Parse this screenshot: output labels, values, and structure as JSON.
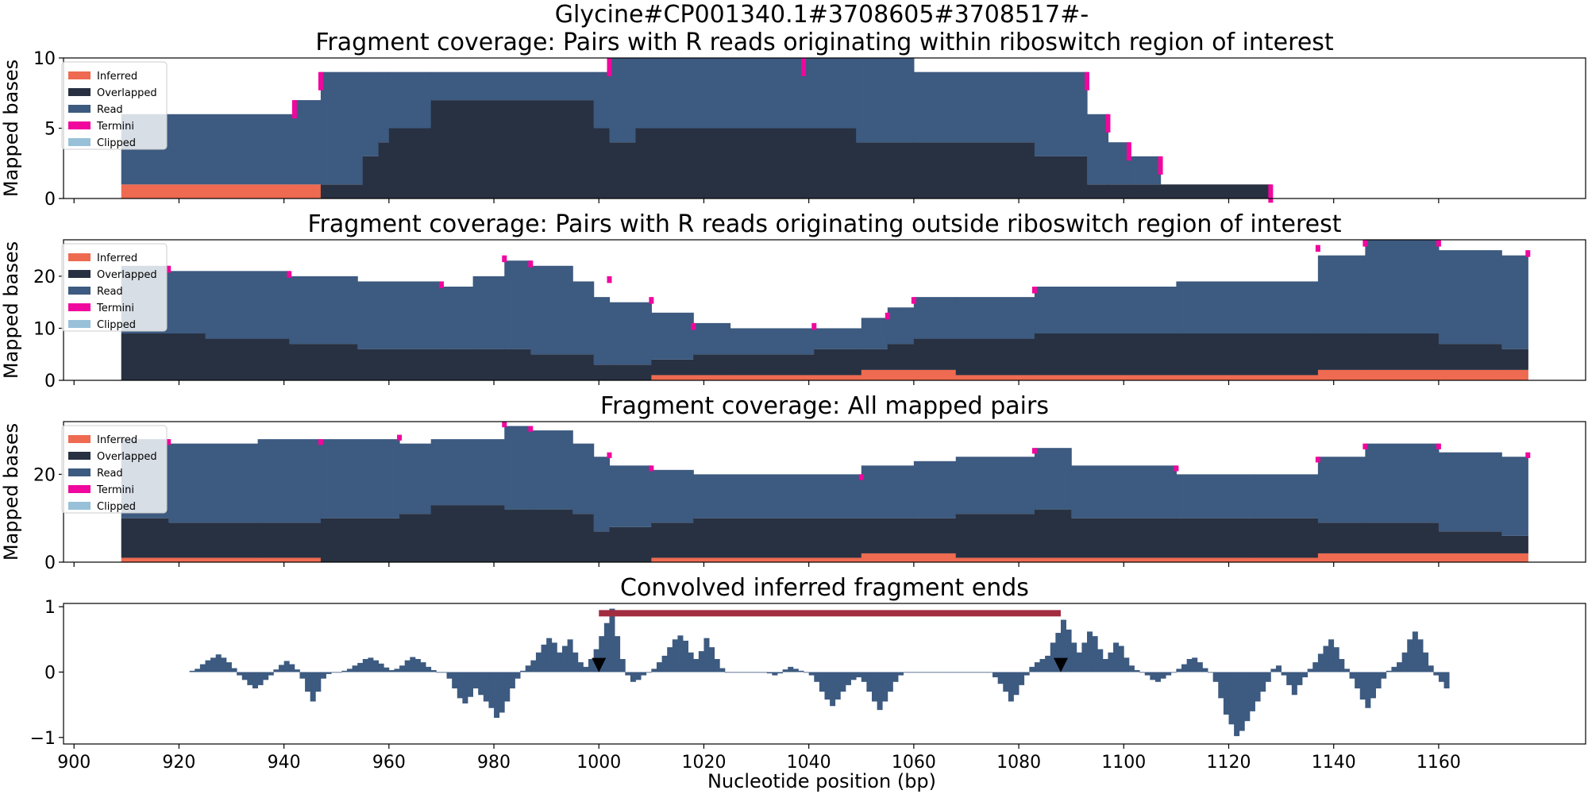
{
  "figure": {
    "suptitle": "Glycine#CP001340.1#3708605#3708517#-",
    "xlabel": "Nucleotide position (bp)",
    "x_ticks": [
      900,
      920,
      940,
      960,
      980,
      1000,
      1020,
      1040,
      1060,
      1080,
      1100,
      1120,
      1140,
      1160
    ],
    "xlim": [
      898,
      1188
    ]
  },
  "colors": {
    "Inferred": "#ee6a50",
    "Overlapped": "#283142",
    "Read": "#3d5a80",
    "Termini": "#f0079d",
    "Clipped": "#98c1d9",
    "bar": "#3d5a80",
    "region": "#a22c40",
    "marker": "#000000"
  },
  "legend_entries": [
    "Inferred",
    "Overlapped",
    "Read",
    "Termini",
    "Clipped"
  ],
  "chart_data": [
    {
      "type": "area",
      "title": "Fragment coverage: Pairs with R reads originating within riboswitch region of interest",
      "ylabel": "Mapped bases",
      "ylim": [
        0,
        10
      ],
      "y_ticks": [
        0,
        5,
        10
      ],
      "legend": "top-left",
      "segments": [
        {
          "x0": 909,
          "x1": 942,
          "inferred": 1,
          "overlapped": 0,
          "read": 5,
          "termini": 0
        },
        {
          "x0": 942,
          "x1": 947,
          "inferred": 1,
          "overlapped": 0,
          "read": 6,
          "termini": 0
        },
        {
          "x0": 947,
          "x1": 955,
          "inferred": 0,
          "overlapped": 1,
          "read": 8,
          "termini": 0
        },
        {
          "x0": 955,
          "x1": 958,
          "inferred": 0,
          "overlapped": 3,
          "read": 6,
          "termini": 0
        },
        {
          "x0": 958,
          "x1": 960,
          "inferred": 0,
          "overlapped": 4,
          "read": 5,
          "termini": 0
        },
        {
          "x0": 960,
          "x1": 968,
          "inferred": 0,
          "overlapped": 5,
          "read": 4,
          "termini": 0
        },
        {
          "x0": 968,
          "x1": 999,
          "inferred": 0,
          "overlapped": 7,
          "read": 2,
          "termini": 0
        },
        {
          "x0": 999,
          "x1": 1002,
          "inferred": 0,
          "overlapped": 5,
          "read": 4,
          "termini": 0
        },
        {
          "x0": 1002,
          "x1": 1007,
          "inferred": 0,
          "overlapped": 4,
          "read": 6,
          "termini": 0
        },
        {
          "x0": 1007,
          "x1": 1049,
          "inferred": 0,
          "overlapped": 5,
          "read": 5,
          "termini": 0
        },
        {
          "x0": 1049,
          "x1": 1060,
          "inferred": 0,
          "overlapped": 4,
          "read": 6,
          "termini": 0
        },
        {
          "x0": 1060,
          "x1": 1083,
          "inferred": 0,
          "overlapped": 4,
          "read": 5,
          "termini": 0
        },
        {
          "x0": 1083,
          "x1": 1093,
          "inferred": 0,
          "overlapped": 3,
          "read": 6,
          "termini": 0
        },
        {
          "x0": 1093,
          "x1": 1097,
          "inferred": 0,
          "overlapped": 1,
          "read": 5,
          "termini": 0
        },
        {
          "x0": 1097,
          "x1": 1101,
          "inferred": 0,
          "overlapped": 1,
          "read": 3,
          "termini": 0
        },
        {
          "x0": 1101,
          "x1": 1107,
          "inferred": 0,
          "overlapped": 1,
          "read": 2,
          "termini": 0
        },
        {
          "x0": 1107,
          "x1": 1128,
          "inferred": 0,
          "overlapped": 1,
          "read": 0,
          "termini": 0
        }
      ],
      "termini_marks": [
        {
          "x": 942,
          "top": 7
        },
        {
          "x": 947,
          "top": 9
        },
        {
          "x": 1002,
          "top": 10
        },
        {
          "x": 1039,
          "top": 10
        },
        {
          "x": 1093,
          "top": 9
        },
        {
          "x": 1097,
          "top": 6
        },
        {
          "x": 1101,
          "top": 4
        },
        {
          "x": 1107,
          "top": 3
        },
        {
          "x": 1128,
          "top": 1
        }
      ]
    },
    {
      "type": "area",
      "title": "Fragment coverage: Pairs with R reads originating outside riboswitch region of interest",
      "ylabel": "Mapped bases",
      "ylim": [
        0,
        27
      ],
      "y_ticks": [
        0,
        10,
        20
      ],
      "legend": "top-left",
      "segments": [
        {
          "x0": 909,
          "x1": 918,
          "inferred": 0,
          "overlapped": 9,
          "read": 13,
          "termini": 0
        },
        {
          "x0": 918,
          "x1": 925,
          "inferred": 0,
          "overlapped": 9,
          "read": 12,
          "termini": 0
        },
        {
          "x0": 925,
          "x1": 941,
          "inferred": 0,
          "overlapped": 8,
          "read": 13,
          "termini": 0
        },
        {
          "x0": 941,
          "x1": 954,
          "inferred": 0,
          "overlapped": 7,
          "read": 13,
          "termini": 0
        },
        {
          "x0": 954,
          "x1": 970,
          "inferred": 0,
          "overlapped": 6,
          "read": 13,
          "termini": 0
        },
        {
          "x0": 970,
          "x1": 976,
          "inferred": 0,
          "overlapped": 6,
          "read": 12,
          "termini": 0
        },
        {
          "x0": 976,
          "x1": 982,
          "inferred": 0,
          "overlapped": 6,
          "read": 14,
          "termini": 0
        },
        {
          "x0": 982,
          "x1": 987,
          "inferred": 0,
          "overlapped": 6,
          "read": 17,
          "termini": 0
        },
        {
          "x0": 987,
          "x1": 995,
          "inferred": 0,
          "overlapped": 5,
          "read": 17,
          "termini": 0
        },
        {
          "x0": 995,
          "x1": 999,
          "inferred": 0,
          "overlapped": 5,
          "read": 14,
          "termini": 0
        },
        {
          "x0": 999,
          "x1": 1002,
          "inferred": 0,
          "overlapped": 3,
          "read": 13,
          "termini": 0
        },
        {
          "x0": 1002,
          "x1": 1010,
          "inferred": 0,
          "overlapped": 3,
          "read": 12,
          "termini": 0
        },
        {
          "x0": 1010,
          "x1": 1018,
          "inferred": 1,
          "overlapped": 3,
          "read": 9,
          "termini": 0
        },
        {
          "x0": 1018,
          "x1": 1025,
          "inferred": 1,
          "overlapped": 4,
          "read": 6,
          "termini": 0
        },
        {
          "x0": 1025,
          "x1": 1041,
          "inferred": 1,
          "overlapped": 4,
          "read": 5,
          "termini": 0
        },
        {
          "x0": 1041,
          "x1": 1050,
          "inferred": 1,
          "overlapped": 5,
          "read": 4,
          "termini": 0
        },
        {
          "x0": 1050,
          "x1": 1055,
          "inferred": 2,
          "overlapped": 4,
          "read": 6,
          "termini": 0
        },
        {
          "x0": 1055,
          "x1": 1060,
          "inferred": 2,
          "overlapped": 5,
          "read": 7,
          "termini": 0
        },
        {
          "x0": 1060,
          "x1": 1068,
          "inferred": 2,
          "overlapped": 6,
          "read": 8,
          "termini": 0
        },
        {
          "x0": 1068,
          "x1": 1083,
          "inferred": 1,
          "overlapped": 7,
          "read": 8,
          "termini": 0
        },
        {
          "x0": 1083,
          "x1": 1110,
          "inferred": 1,
          "overlapped": 8,
          "read": 9,
          "termini": 0
        },
        {
          "x0": 1110,
          "x1": 1137,
          "inferred": 1,
          "overlapped": 8,
          "read": 10,
          "termini": 0
        },
        {
          "x0": 1137,
          "x1": 1146,
          "inferred": 2,
          "overlapped": 7,
          "read": 15,
          "termini": 0
        },
        {
          "x0": 1146,
          "x1": 1160,
          "inferred": 2,
          "overlapped": 7,
          "read": 18,
          "termini": 0
        },
        {
          "x0": 1160,
          "x1": 1172,
          "inferred": 2,
          "overlapped": 5,
          "read": 18,
          "termini": 0
        },
        {
          "x0": 1172,
          "x1": 1177,
          "inferred": 2,
          "overlapped": 4,
          "read": 18,
          "termini": 0
        }
      ],
      "termini_marks": [
        {
          "x": 918,
          "top": 22
        },
        {
          "x": 941,
          "top": 21
        },
        {
          "x": 970,
          "top": 19
        },
        {
          "x": 982,
          "top": 24
        },
        {
          "x": 987,
          "top": 23
        },
        {
          "x": 1002,
          "top": 20
        },
        {
          "x": 1010,
          "top": 16
        },
        {
          "x": 1018,
          "top": 11
        },
        {
          "x": 1041,
          "top": 11
        },
        {
          "x": 1055,
          "top": 13
        },
        {
          "x": 1060,
          "top": 16
        },
        {
          "x": 1083,
          "top": 18
        },
        {
          "x": 1137,
          "top": 26
        },
        {
          "x": 1146,
          "top": 27
        },
        {
          "x": 1160,
          "top": 27
        },
        {
          "x": 1177,
          "top": 25
        }
      ]
    },
    {
      "type": "area",
      "title": "Fragment coverage: All mapped pairs",
      "ylabel": "Mapped bases",
      "ylim": [
        0,
        32
      ],
      "y_ticks": [
        0,
        20
      ],
      "legend": "top-left",
      "segments": [
        {
          "x0": 909,
          "x1": 918,
          "inferred": 1,
          "overlapped": 9,
          "read": 18,
          "termini": 0
        },
        {
          "x0": 918,
          "x1": 935,
          "inferred": 1,
          "overlapped": 8,
          "read": 18,
          "termini": 0
        },
        {
          "x0": 935,
          "x1": 947,
          "inferred": 1,
          "overlapped": 8,
          "read": 19,
          "termini": 0
        },
        {
          "x0": 947,
          "x1": 962,
          "inferred": 0,
          "overlapped": 10,
          "read": 18,
          "termini": 0
        },
        {
          "x0": 962,
          "x1": 968,
          "inferred": 0,
          "overlapped": 11,
          "read": 16,
          "termini": 0
        },
        {
          "x0": 968,
          "x1": 982,
          "inferred": 0,
          "overlapped": 13,
          "read": 15,
          "termini": 0
        },
        {
          "x0": 982,
          "x1": 987,
          "inferred": 0,
          "overlapped": 12,
          "read": 19,
          "termini": 0
        },
        {
          "x0": 987,
          "x1": 995,
          "inferred": 0,
          "overlapped": 12,
          "read": 18,
          "termini": 0
        },
        {
          "x0": 995,
          "x1": 999,
          "inferred": 0,
          "overlapped": 11,
          "read": 16,
          "termini": 0
        },
        {
          "x0": 999,
          "x1": 1002,
          "inferred": 0,
          "overlapped": 7,
          "read": 17,
          "termini": 0
        },
        {
          "x0": 1002,
          "x1": 1010,
          "inferred": 0,
          "overlapped": 8,
          "read": 14,
          "termini": 0
        },
        {
          "x0": 1010,
          "x1": 1018,
          "inferred": 1,
          "overlapped": 8,
          "read": 12,
          "termini": 0
        },
        {
          "x0": 1018,
          "x1": 1050,
          "inferred": 1,
          "overlapped": 9,
          "read": 10,
          "termini": 0
        },
        {
          "x0": 1050,
          "x1": 1060,
          "inferred": 2,
          "overlapped": 8,
          "read": 12,
          "termini": 0
        },
        {
          "x0": 1060,
          "x1": 1068,
          "inferred": 2,
          "overlapped": 8,
          "read": 13,
          "termini": 0
        },
        {
          "x0": 1068,
          "x1": 1083,
          "inferred": 1,
          "overlapped": 10,
          "read": 13,
          "termini": 0
        },
        {
          "x0": 1083,
          "x1": 1090,
          "inferred": 1,
          "overlapped": 11,
          "read": 14,
          "termini": 0
        },
        {
          "x0": 1090,
          "x1": 1110,
          "inferred": 1,
          "overlapped": 9,
          "read": 12,
          "termini": 0
        },
        {
          "x0": 1110,
          "x1": 1125,
          "inferred": 1,
          "overlapped": 9,
          "read": 10,
          "termini": 0
        },
        {
          "x0": 1125,
          "x1": 1137,
          "inferred": 1,
          "overlapped": 9,
          "read": 10,
          "termini": 0
        },
        {
          "x0": 1137,
          "x1": 1146,
          "inferred": 2,
          "overlapped": 7,
          "read": 15,
          "termini": 0
        },
        {
          "x0": 1146,
          "x1": 1160,
          "inferred": 2,
          "overlapped": 7,
          "read": 18,
          "termini": 0
        },
        {
          "x0": 1160,
          "x1": 1172,
          "inferred": 2,
          "overlapped": 5,
          "read": 18,
          "termini": 0
        },
        {
          "x0": 1172,
          "x1": 1177,
          "inferred": 2,
          "overlapped": 4,
          "read": 18,
          "termini": 0
        }
      ],
      "termini_marks": [
        {
          "x": 918,
          "top": 28
        },
        {
          "x": 947,
          "top": 28
        },
        {
          "x": 962,
          "top": 29
        },
        {
          "x": 982,
          "top": 32
        },
        {
          "x": 987,
          "top": 31
        },
        {
          "x": 1002,
          "top": 25
        },
        {
          "x": 1010,
          "top": 22
        },
        {
          "x": 1050,
          "top": 20
        },
        {
          "x": 1083,
          "top": 26
        },
        {
          "x": 1110,
          "top": 22
        },
        {
          "x": 1137,
          "top": 24
        },
        {
          "x": 1146,
          "top": 27
        },
        {
          "x": 1160,
          "top": 27
        },
        {
          "x": 1177,
          "top": 25
        }
      ]
    },
    {
      "type": "bar",
      "title": "Convolved inferred fragment ends",
      "ylim": [
        -1.1,
        1.05
      ],
      "y_ticks": [
        -1,
        0,
        1
      ],
      "region": {
        "x0": 1000,
        "x1": 1088,
        "y": 0.9
      },
      "markers": [
        {
          "x": 1000,
          "y": 0.12
        },
        {
          "x": 1088,
          "y": 0.12
        }
      ],
      "x_start": 922,
      "bin_width": 1,
      "values": [
        0.02,
        0.05,
        0.12,
        0.18,
        0.22,
        0.27,
        0.22,
        0.15,
        0.06,
        -0.05,
        -0.12,
        -0.2,
        -0.25,
        -0.2,
        -0.12,
        -0.05,
        0.04,
        0.11,
        0.17,
        0.12,
        0.04,
        -0.1,
        -0.3,
        -0.45,
        -0.3,
        -0.1,
        -0.03,
        0.0,
        0.0,
        0.02,
        0.05,
        0.1,
        0.14,
        0.2,
        0.22,
        0.18,
        0.13,
        0.07,
        0.03,
        0.05,
        0.1,
        0.18,
        0.23,
        0.2,
        0.15,
        0.08,
        0.03,
        0.0,
        0.0,
        -0.1,
        -0.25,
        -0.4,
        -0.48,
        -0.38,
        -0.25,
        -0.35,
        -0.45,
        -0.55,
        -0.7,
        -0.62,
        -0.45,
        -0.25,
        -0.1,
        0.02,
        0.1,
        0.18,
        0.3,
        0.42,
        0.52,
        0.45,
        0.3,
        0.4,
        0.5,
        0.3,
        0.15,
        0.08,
        0.2,
        0.35,
        0.55,
        0.75,
        0.97,
        0.55,
        0.2,
        -0.05,
        -0.15,
        -0.12,
        -0.05,
        0.0,
        0.05,
        0.15,
        0.25,
        0.38,
        0.5,
        0.56,
        0.48,
        0.3,
        0.2,
        0.32,
        0.52,
        0.38,
        0.2,
        0.06,
        0.0,
        0.0,
        0.0,
        0.0,
        0.0,
        0.0,
        0.0,
        0.0,
        -0.02,
        -0.05,
        -0.02,
        0.04,
        0.08,
        0.05,
        0.02,
        0.0,
        -0.05,
        -0.15,
        -0.3,
        -0.42,
        -0.52,
        -0.42,
        -0.3,
        -0.2,
        -0.12,
        -0.08,
        -0.15,
        -0.3,
        -0.45,
        -0.58,
        -0.45,
        -0.3,
        -0.15,
        -0.05,
        0.0,
        0.0,
        0.0,
        0.0,
        0.0,
        0.0,
        0.0,
        0.0,
        0.0,
        0.0,
        0.0,
        0.0,
        0.0,
        0.0,
        0.0,
        0.0,
        0.0,
        -0.08,
        -0.18,
        -0.3,
        -0.45,
        -0.35,
        -0.2,
        -0.05,
        0.08,
        0.15,
        0.2,
        0.25,
        0.45,
        0.6,
        0.8,
        0.65,
        0.45,
        0.3,
        0.45,
        0.62,
        0.55,
        0.35,
        0.2,
        0.3,
        0.45,
        0.4,
        0.22,
        0.1,
        0.03,
        0.0,
        -0.05,
        -0.12,
        -0.15,
        -0.1,
        -0.05,
        0.0,
        0.05,
        0.12,
        0.2,
        0.22,
        0.15,
        0.06,
        0.0,
        -0.15,
        -0.4,
        -0.65,
        -0.8,
        -0.98,
        -0.9,
        -0.75,
        -0.6,
        -0.45,
        -0.3,
        -0.15,
        0.05,
        0.1,
        -0.05,
        -0.2,
        -0.35,
        -0.2,
        -0.08,
        0.05,
        0.15,
        0.28,
        0.4,
        0.5,
        0.38,
        0.2,
        0.05,
        -0.1,
        -0.25,
        -0.42,
        -0.55,
        -0.4,
        -0.25,
        -0.1,
        0.02,
        0.08,
        0.15,
        0.3,
        0.5,
        0.62,
        0.5,
        0.3,
        0.1,
        -0.05,
        -0.15,
        -0.25
      ]
    }
  ]
}
